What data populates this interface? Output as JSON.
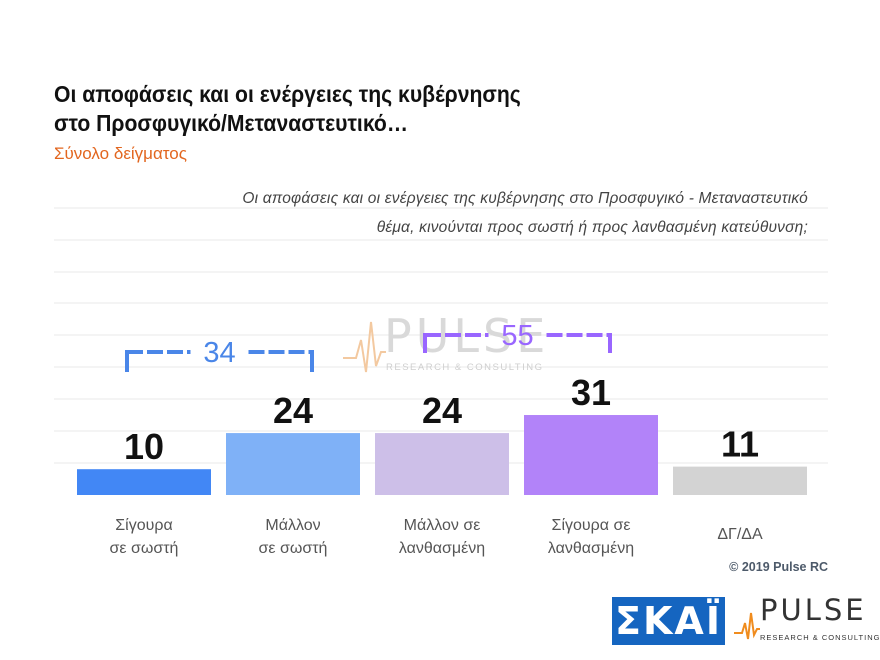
{
  "header": {
    "title_line1": "Οι αποφάσεις και οι ενέργειες της κυβέρνησης",
    "title_line2": "στο Προσφυγικό/Μεταναστευτικό…",
    "subtitle": "Σύνολο δείγματος"
  },
  "question": {
    "line1": "Οι αποφάσεις και οι ενέργειες της κυβέρνησης στο Προσφυγικό - Μεταναστευτικό",
    "line2": "θέμα, κινούνται προς σωστή ή προς λανθασμένη κατεύθυνση;"
  },
  "chart_data": {
    "type": "bar",
    "categories": [
      [
        "Σίγουρα",
        "σε σωστή"
      ],
      [
        "Μάλλον",
        "σε σωστή"
      ],
      [
        "Μάλλον σε",
        "λανθασμένη"
      ],
      [
        "Σίγουρα σε",
        "λανθασμένη"
      ],
      [
        "ΔΓ/ΔΑ"
      ]
    ],
    "values": [
      10,
      24,
      24,
      31,
      11
    ],
    "colors": [
      "#4287f5",
      "#7fb1f7",
      "#cdbfe8",
      "#b283f9",
      "#d3d3d3"
    ],
    "grid": true,
    "brackets": [
      {
        "label": "34",
        "from": 0,
        "to": 1,
        "color": "#4a86e8"
      },
      {
        "label": "55",
        "from": 2,
        "to": 3,
        "color": "#9966ff"
      }
    ]
  },
  "watermark": {
    "word": "PULSE",
    "sub": "RESEARCH & CONSULTING"
  },
  "footer": {
    "copyright": "© 2019 Pulse RC",
    "skai_logo": "ΣΚΑΪ",
    "pulse_word": "PULSE",
    "pulse_sub": "RESEARCH & CONSULTING"
  }
}
